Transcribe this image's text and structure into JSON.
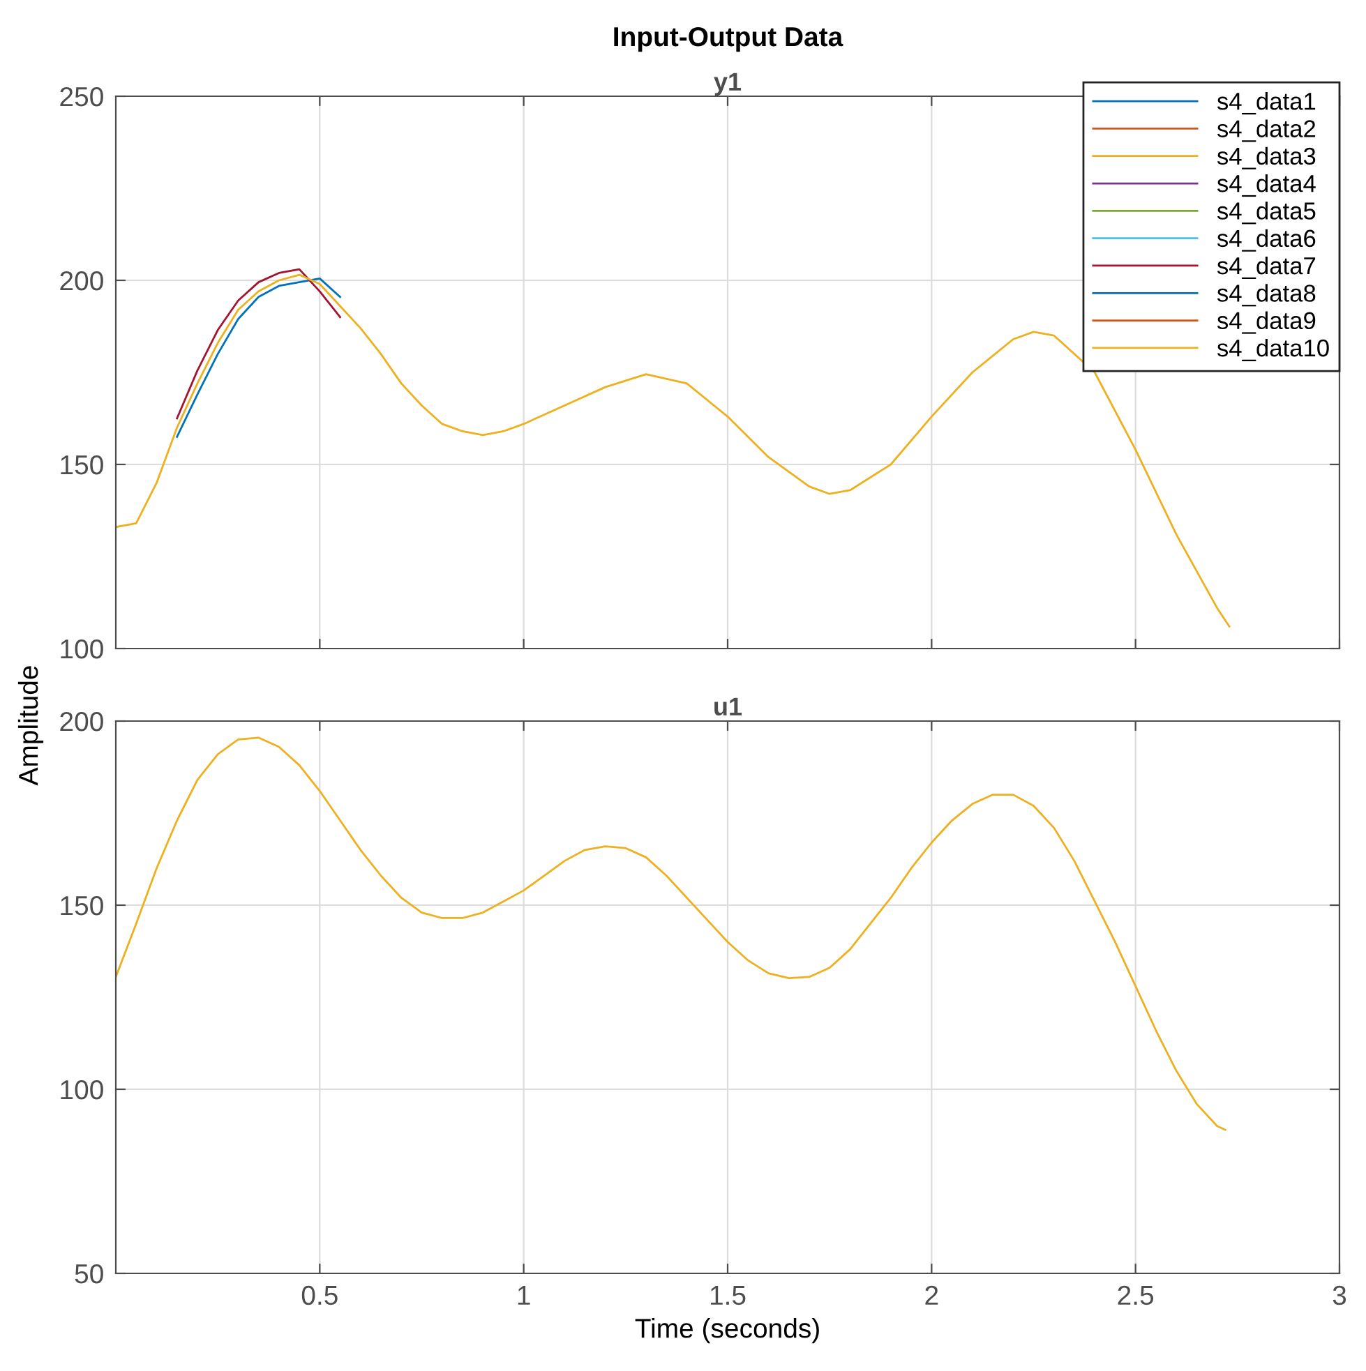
{
  "chart_data": [
    {
      "type": "line",
      "title": "Input-Output Data",
      "subtitle": "y1",
      "xlim": [
        0,
        3
      ],
      "xticks": [
        0.5,
        1,
        1.5,
        2,
        2.5,
        3
      ],
      "ylim": [
        100,
        250
      ],
      "yticks": [
        100,
        150,
        200,
        250
      ],
      "grid": true,
      "legend": "top right",
      "tick_labels": "y",
      "x": [
        0,
        0.05,
        0.1,
        0.15,
        0.2,
        0.25,
        0.3,
        0.35,
        0.4,
        0.45,
        0.5,
        0.55,
        0.6,
        0.65,
        0.7,
        0.75,
        0.8,
        0.85,
        0.9,
        0.95,
        1.0,
        1.1,
        1.2,
        1.3,
        1.4,
        1.5,
        1.6,
        1.7,
        1.75,
        1.8,
        1.9,
        2.0,
        2.1,
        2.2,
        2.25,
        2.3,
        2.4,
        2.5,
        2.6,
        2.7,
        2.73
      ],
      "series": [
        {
          "name": "s4_data1",
          "color": "#0072bd",
          "values": [
            null,
            null,
            null,
            157.5,
            169,
            180,
            189.5,
            195.5,
            198.5,
            199.5,
            200.5,
            195.5,
            null,
            null,
            null,
            null,
            null,
            null,
            null,
            null,
            null,
            null,
            null,
            null,
            null,
            null,
            null,
            null,
            null,
            null,
            null,
            null,
            null,
            null,
            null,
            null,
            null,
            null,
            null,
            null,
            null
          ]
        },
        {
          "name": "s4_data2",
          "color": "#d95319",
          "values": [
            null,
            null,
            null,
            null,
            null,
            null,
            null,
            null,
            null,
            null,
            null,
            null,
            null,
            null,
            null,
            null,
            null,
            null,
            null,
            null,
            null,
            null,
            null,
            null,
            null,
            null,
            null,
            null,
            null,
            null,
            null,
            null,
            null,
            null,
            null,
            null,
            null,
            null,
            null,
            null,
            null
          ]
        },
        {
          "name": "s4_data3",
          "color": "#edb120",
          "values": [
            null,
            null,
            null,
            null,
            null,
            null,
            null,
            null,
            null,
            null,
            null,
            null,
            null,
            null,
            null,
            null,
            null,
            null,
            null,
            null,
            null,
            null,
            null,
            null,
            null,
            null,
            null,
            null,
            null,
            null,
            null,
            null,
            null,
            null,
            null,
            null,
            null,
            null,
            null,
            null,
            null
          ]
        },
        {
          "name": "s4_data4",
          "color": "#7e2f8e",
          "values": [
            null,
            null,
            null,
            null,
            null,
            null,
            null,
            null,
            null,
            null,
            null,
            null,
            null,
            null,
            null,
            null,
            null,
            null,
            null,
            null,
            null,
            null,
            null,
            null,
            null,
            null,
            null,
            null,
            null,
            null,
            null,
            null,
            null,
            null,
            null,
            null,
            null,
            null,
            null,
            null,
            null
          ]
        },
        {
          "name": "s4_data5",
          "color": "#77ac30",
          "values": [
            null,
            null,
            null,
            null,
            null,
            null,
            null,
            null,
            null,
            null,
            null,
            null,
            null,
            null,
            null,
            null,
            null,
            null,
            null,
            null,
            null,
            null,
            null,
            null,
            null,
            null,
            null,
            null,
            null,
            null,
            null,
            null,
            null,
            null,
            null,
            null,
            null,
            null,
            null,
            null,
            null
          ]
        },
        {
          "name": "s4_data6",
          "color": "#4dbeee",
          "values": [
            null,
            null,
            null,
            null,
            null,
            null,
            null,
            null,
            null,
            null,
            null,
            null,
            null,
            null,
            null,
            null,
            null,
            null,
            null,
            null,
            null,
            null,
            null,
            null,
            null,
            null,
            null,
            null,
            null,
            null,
            null,
            null,
            null,
            null,
            null,
            null,
            null,
            null,
            null,
            null,
            null
          ]
        },
        {
          "name": "s4_data7",
          "color": "#a2142f",
          "values": [
            null,
            null,
            null,
            162.5,
            175.5,
            186.5,
            194.5,
            199.5,
            202,
            203,
            197,
            190,
            null,
            null,
            null,
            null,
            null,
            null,
            null,
            null,
            null,
            null,
            null,
            null,
            null,
            null,
            null,
            null,
            null,
            null,
            null,
            null,
            null,
            null,
            null,
            null,
            null,
            null,
            null,
            null,
            null
          ]
        },
        {
          "name": "s4_data8",
          "color": "#0072bd",
          "values": [
            null,
            null,
            null,
            null,
            null,
            null,
            null,
            null,
            null,
            null,
            null,
            null,
            null,
            null,
            null,
            null,
            null,
            null,
            null,
            null,
            null,
            null,
            null,
            null,
            null,
            null,
            null,
            null,
            null,
            null,
            null,
            null,
            null,
            null,
            null,
            null,
            null,
            null,
            null,
            null,
            null
          ]
        },
        {
          "name": "s4_data9",
          "color": "#d95319",
          "values": [
            null,
            null,
            null,
            null,
            null,
            null,
            null,
            null,
            null,
            null,
            null,
            null,
            null,
            null,
            null,
            null,
            null,
            null,
            null,
            null,
            null,
            null,
            null,
            null,
            null,
            null,
            null,
            null,
            null,
            null,
            null,
            null,
            null,
            null,
            null,
            null,
            null,
            null,
            null,
            null,
            null
          ]
        },
        {
          "name": "s4_data10",
          "color": "#edb120",
          "values": [
            133,
            134,
            145,
            160,
            172,
            183,
            192,
            197,
            200,
            201.5,
            199,
            193,
            187,
            180,
            172,
            166,
            161,
            159,
            158,
            159,
            161,
            166,
            171,
            174.5,
            172,
            163,
            152,
            144,
            142,
            143,
            150,
            163,
            175,
            184,
            186,
            185,
            175,
            154,
            131,
            111,
            106
          ]
        }
      ]
    },
    {
      "type": "line",
      "title": "u1",
      "xlabel": "Time (seconds)",
      "ylabel": "Amplitude",
      "xlim": [
        0,
        3
      ],
      "xticks": [
        0.5,
        1,
        1.5,
        2,
        2.5,
        3
      ],
      "ylim": [
        50,
        200
      ],
      "yticks": [
        50,
        100,
        150,
        200
      ],
      "grid": true,
      "x": [
        0,
        0.05,
        0.1,
        0.15,
        0.2,
        0.25,
        0.3,
        0.35,
        0.4,
        0.45,
        0.5,
        0.55,
        0.6,
        0.65,
        0.7,
        0.75,
        0.8,
        0.85,
        0.9,
        0.95,
        1.0,
        1.05,
        1.1,
        1.15,
        1.2,
        1.25,
        1.3,
        1.35,
        1.4,
        1.45,
        1.5,
        1.55,
        1.6,
        1.65,
        1.7,
        1.75,
        1.8,
        1.85,
        1.9,
        1.95,
        2.0,
        2.05,
        2.1,
        2.15,
        2.2,
        2.25,
        2.3,
        2.35,
        2.4,
        2.45,
        2.5,
        2.55,
        2.6,
        2.65,
        2.7,
        2.72
      ],
      "series": [
        {
          "color": "#edb120",
          "values": [
            130.5,
            145,
            160,
            173,
            184,
            191,
            195,
            195.5,
            193,
            188,
            181,
            173,
            165,
            158,
            152,
            148,
            146.5,
            146.5,
            148,
            151,
            154,
            158,
            162,
            165,
            166,
            165.5,
            163,
            158,
            152,
            146,
            140,
            135,
            131.5,
            130.2,
            130.5,
            133,
            138,
            145,
            152,
            160,
            167,
            173,
            177.5,
            180,
            180,
            177,
            171,
            162,
            151,
            140,
            128,
            116,
            105,
            96,
            90,
            89
          ]
        }
      ]
    }
  ]
}
